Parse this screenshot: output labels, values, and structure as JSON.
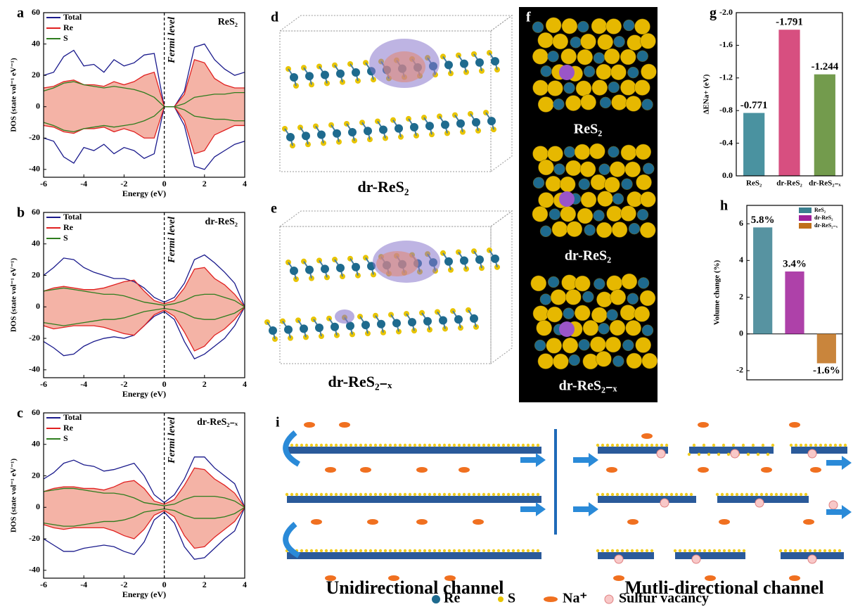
{
  "chart_data": [
    {
      "type": "line",
      "panel": "a",
      "label": "ReS₂",
      "annotation": "Fermi level",
      "vline": 0,
      "xlabel": "Energy (eV)",
      "ylabel": "DOS (state vol⁻¹ eV⁻¹)",
      "x": [
        -6,
        -5.5,
        -5,
        -4.5,
        -4,
        -3.5,
        -3,
        -2.5,
        -2,
        -1.5,
        -1,
        -0.5,
        0,
        0.5,
        1,
        1.5,
        2,
        2.5,
        3,
        3.5,
        4
      ],
      "series": [
        {
          "name": "Total",
          "color": "#1a1a8c",
          "values": [
            20,
            22,
            32,
            36,
            26,
            27,
            22,
            30,
            26,
            28,
            33,
            34,
            0,
            0,
            10,
            38,
            40,
            30,
            24,
            20,
            22
          ],
          "spin_down": [
            -20,
            -22,
            -32,
            -36,
            -26,
            -28,
            -24,
            -30,
            -26,
            -28,
            -33,
            -30,
            0,
            0,
            -12,
            -38,
            -40,
            -32,
            -28,
            -24,
            -22
          ]
        },
        {
          "name": "Re",
          "color": "#e02020",
          "fill": "#f4b3a6",
          "values": [
            12,
            13,
            16,
            17,
            14,
            14,
            13,
            16,
            14,
            16,
            20,
            22,
            0,
            0,
            8,
            30,
            28,
            18,
            14,
            12,
            12
          ],
          "spin_down": [
            -12,
            -13,
            -16,
            -17,
            -14,
            -14,
            -13,
            -16,
            -14,
            -16,
            -20,
            -20,
            0,
            0,
            -9,
            -30,
            -28,
            -18,
            -15,
            -12,
            -12
          ]
        },
        {
          "name": "S",
          "color": "#2e7d1e",
          "values": [
            10,
            12,
            15,
            16,
            14,
            13,
            12,
            13,
            12,
            11,
            9,
            6,
            0,
            0,
            2,
            6,
            7,
            8,
            8,
            9,
            9
          ],
          "spin_down": [
            -10,
            -12,
            -15,
            -16,
            -14,
            -13,
            -12,
            -13,
            -12,
            -11,
            -9,
            -6,
            0,
            0,
            -2,
            -6,
            -7,
            -8,
            -8,
            -9,
            -9
          ]
        }
      ],
      "xlim": [
        -6,
        4
      ],
      "xticks": [
        -6,
        -4,
        -2,
        0,
        2,
        4
      ],
      "ylim": [
        -45,
        60
      ],
      "yticks": [
        -40,
        -20,
        0,
        20,
        40,
        60
      ],
      "legend": "top-left"
    },
    {
      "type": "line",
      "panel": "b",
      "label": "dr-ReS₂",
      "annotation": "Fermi level",
      "vline": 0,
      "xlabel": "Energy (eV)",
      "ylabel": "DOS (state vol⁻¹ eV⁻¹)",
      "x": [
        -6,
        -5.5,
        -5,
        -4.5,
        -4,
        -3.5,
        -3,
        -2.5,
        -2,
        -1.5,
        -1,
        -0.5,
        0,
        0.5,
        1,
        1.5,
        2,
        2.5,
        3,
        3.5,
        4
      ],
      "series": [
        {
          "name": "Total",
          "color": "#1a1a8c",
          "values": [
            20,
            25,
            31,
            30,
            25,
            22,
            20,
            18,
            18,
            16,
            12,
            6,
            3,
            6,
            15,
            30,
            33,
            28,
            22,
            15,
            0
          ],
          "spin_down": [
            -22,
            -26,
            -31,
            -30,
            -25,
            -22,
            -20,
            -19,
            -20,
            -18,
            -12,
            -6,
            -3,
            -8,
            -22,
            -33,
            -30,
            -25,
            -20,
            -12,
            0
          ]
        },
        {
          "name": "Re",
          "color": "#e02020",
          "fill": "#f4b3a6",
          "values": [
            10,
            12,
            13,
            12,
            11,
            11,
            12,
            14,
            16,
            17,
            10,
            4,
            2,
            4,
            12,
            24,
            25,
            18,
            14,
            8,
            0
          ],
          "spin_down": [
            -12,
            -14,
            -13,
            -12,
            -12,
            -12,
            -13,
            -15,
            -17,
            -18,
            -12,
            -5,
            -2,
            -6,
            -16,
            -28,
            -25,
            -18,
            -14,
            -8,
            0
          ]
        },
        {
          "name": "S",
          "color": "#2e7d1e",
          "values": [
            10,
            11,
            12,
            11,
            10,
            9,
            8,
            8,
            7,
            5,
            3,
            2,
            1,
            2,
            4,
            7,
            8,
            8,
            6,
            4,
            0
          ],
          "spin_down": [
            -10,
            -11,
            -12,
            -11,
            -10,
            -9,
            -8,
            -8,
            -7,
            -5,
            -3,
            -2,
            -1,
            -2,
            -4,
            -7,
            -8,
            -8,
            -6,
            -4,
            0
          ]
        }
      ],
      "xlim": [
        -6,
        4
      ],
      "xticks": [
        -6,
        -4,
        -2,
        0,
        2,
        4
      ],
      "ylim": [
        -45,
        60
      ],
      "yticks": [
        -40,
        -20,
        0,
        20,
        40,
        60
      ],
      "legend": "top-left"
    },
    {
      "type": "line",
      "panel": "c",
      "label": "dr-ReS₂₋ₓ",
      "annotation": "Fermi level",
      "vline": 0,
      "xlabel": "Energy (eV)",
      "ylabel": "DOS (state vol⁻¹ eV⁻¹)",
      "x": [
        -6,
        -5.5,
        -5,
        -4.5,
        -4,
        -3.5,
        -3,
        -2.5,
        -2,
        -1.5,
        -1,
        -0.5,
        0,
        0.5,
        1,
        1.5,
        2,
        2.5,
        3,
        3.5,
        4
      ],
      "series": [
        {
          "name": "Total",
          "color": "#1a1a8c",
          "values": [
            18,
            22,
            28,
            30,
            27,
            26,
            23,
            24,
            26,
            28,
            20,
            8,
            3,
            8,
            18,
            32,
            32,
            25,
            20,
            15,
            0
          ],
          "spin_down": [
            -20,
            -24,
            -28,
            -28,
            -26,
            -25,
            -24,
            -25,
            -28,
            -30,
            -22,
            -8,
            -3,
            -10,
            -25,
            -33,
            -32,
            -26,
            -20,
            -15,
            0
          ]
        },
        {
          "name": "Re",
          "color": "#e02020",
          "fill": "#f4b3a6",
          "values": [
            10,
            12,
            13,
            13,
            12,
            12,
            11,
            13,
            16,
            17,
            12,
            4,
            2,
            5,
            14,
            25,
            24,
            18,
            14,
            9,
            0
          ],
          "spin_down": [
            -11,
            -13,
            -14,
            -13,
            -13,
            -13,
            -13,
            -15,
            -18,
            -20,
            -14,
            -5,
            -2,
            -6,
            -18,
            -26,
            -25,
            -19,
            -14,
            -9,
            0
          ]
        },
        {
          "name": "S",
          "color": "#2e7d1e",
          "values": [
            10,
            11,
            12,
            12,
            11,
            10,
            9,
            9,
            8,
            6,
            3,
            2,
            1,
            2,
            5,
            7,
            7,
            7,
            6,
            4,
            0
          ],
          "spin_down": [
            -10,
            -11,
            -12,
            -12,
            -11,
            -10,
            -9,
            -9,
            -8,
            -6,
            -3,
            -2,
            -1,
            -2,
            -5,
            -7,
            -7,
            -7,
            -6,
            -4,
            0
          ]
        }
      ],
      "xlim": [
        -6,
        4
      ],
      "xticks": [
        -6,
        -4,
        -2,
        0,
        2,
        4
      ],
      "ylim": [
        -45,
        60
      ],
      "yticks": [
        -40,
        -20,
        0,
        20,
        40,
        60
      ],
      "legend": "top-left"
    },
    {
      "type": "bar",
      "panel": "g",
      "ylabel": "ΔENa+ (eV)",
      "categories": [
        "ReS₂",
        "dr-ReS₂",
        "dr-ReS₂₋ₓ"
      ],
      "values": [
        -0.771,
        -1.791,
        -1.244
      ],
      "colors": [
        "#2a7f8f",
        "#d0306a",
        "#5a8a2e"
      ],
      "ylim": [
        0,
        -2
      ],
      "yticks": [
        {
          "value": 0,
          "label": "0.0"
        },
        -0.4,
        -0.8,
        -1.2,
        -1.6,
        {
          "value": -2,
          "label": "-2.0"
        }
      ]
    },
    {
      "type": "bar",
      "panel": "h",
      "ylabel": "Volume change (%)",
      "categories": [
        "ReS₂",
        "dr-ReS₂",
        "dr-ReS₂₋ₓ"
      ],
      "values": [
        5.8,
        3.4,
        -1.6
      ],
      "value_labels": [
        "5.8%",
        "3.4%",
        "-1.6%"
      ],
      "colors": [
        "#3a8090",
        "#a0209a",
        "#c0701a"
      ],
      "ylim": [
        -2.5,
        7
      ],
      "yticks": [
        -2,
        0,
        2,
        4,
        6
      ],
      "legend": "top-right"
    }
  ],
  "illustrations": [
    {
      "panel": "d",
      "caption": "dr-ReS₂"
    },
    {
      "panel": "e",
      "caption": "dr-ReS₂₋ₓ"
    },
    {
      "panel": "f",
      "captions": [
        "ReS₂",
        "dr-ReS₂",
        "dr-ReS₂₋ₓ"
      ]
    },
    {
      "panel": "i",
      "titles": [
        "Unidirectional channel",
        "Mutli-directional channel"
      ],
      "legend": [
        "Re",
        "S",
        "Na⁺",
        "Sulfur vacancy"
      ]
    }
  ]
}
